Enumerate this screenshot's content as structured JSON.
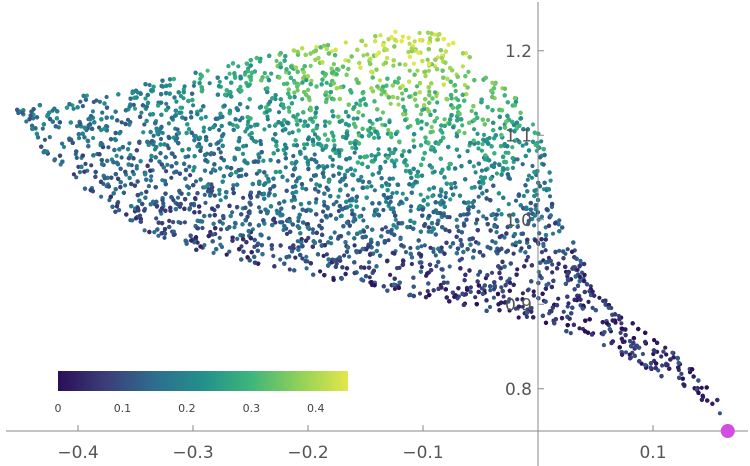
{
  "chart_data": {
    "type": "scatter",
    "title": "",
    "xlabel": "",
    "ylabel": "",
    "xlim": [
      -0.465,
      0.175
    ],
    "ylim": [
      0.735,
      1.245
    ],
    "x_ticks": [
      -0.4,
      -0.3,
      -0.2,
      -0.1,
      0.1
    ],
    "x_tick_labels": [
      "−0.4",
      "−0.3",
      "−0.2",
      "−0.1",
      "0.1"
    ],
    "y_ticks": [
      0.8,
      0.9,
      1.0,
      1.1,
      1.2
    ],
    "y_tick_labels": [
      "0.8",
      "0.9",
      "1.0",
      "1.1",
      "1.2"
    ],
    "axes_origin": [
      0,
      0.75
    ],
    "grid": false,
    "point_count_approx": 60000,
    "color_variable_range": [
      0,
      0.45
    ],
    "colormap": "viridis",
    "colormap_stops": [
      "#2b0f57",
      "#3b3f7a",
      "#2f6c8e",
      "#23908c",
      "#3fb67a",
      "#8fd058",
      "#e3e74a"
    ],
    "region_outline": [
      [
        -0.455,
        1.13
      ],
      [
        -0.42,
        1.14
      ],
      [
        -0.35,
        1.16
      ],
      [
        -0.25,
        1.19
      ],
      [
        -0.18,
        1.21
      ],
      [
        -0.12,
        1.225
      ],
      [
        -0.08,
        1.22
      ],
      [
        -0.04,
        1.17
      ],
      [
        0.0,
        1.12
      ],
      [
        0.012,
        1.05
      ],
      [
        0.025,
        0.99
      ],
      [
        0.05,
        0.92
      ],
      [
        0.09,
        0.87
      ],
      [
        0.13,
        0.83
      ],
      [
        0.155,
        0.79
      ],
      [
        0.165,
        0.755
      ],
      [
        0.15,
        0.78
      ],
      [
        0.1,
        0.82
      ],
      [
        0.05,
        0.855
      ],
      [
        0.0,
        0.88
      ],
      [
        -0.06,
        0.895
      ],
      [
        -0.2,
        0.935
      ],
      [
        -0.3,
        0.965
      ],
      [
        -0.34,
        0.985
      ],
      [
        -0.38,
        1.02
      ],
      [
        -0.43,
        1.08
      ],
      [
        -0.455,
        1.13
      ]
    ],
    "color_gradient_direction": "low values near the lower/left edge, high values near the top around x=-0.1",
    "highlight_point": {
      "x": 0.165,
      "y": 0.75,
      "color": "#d34de0"
    },
    "colorbar": {
      "placement": "bottom-left",
      "min": 0,
      "max": 0.45,
      "ticks": [
        0,
        0.1,
        0.2,
        0.3,
        0.4
      ],
      "tick_labels": [
        "0",
        "0.1",
        "0.2",
        "0.3",
        "0.4"
      ]
    }
  }
}
